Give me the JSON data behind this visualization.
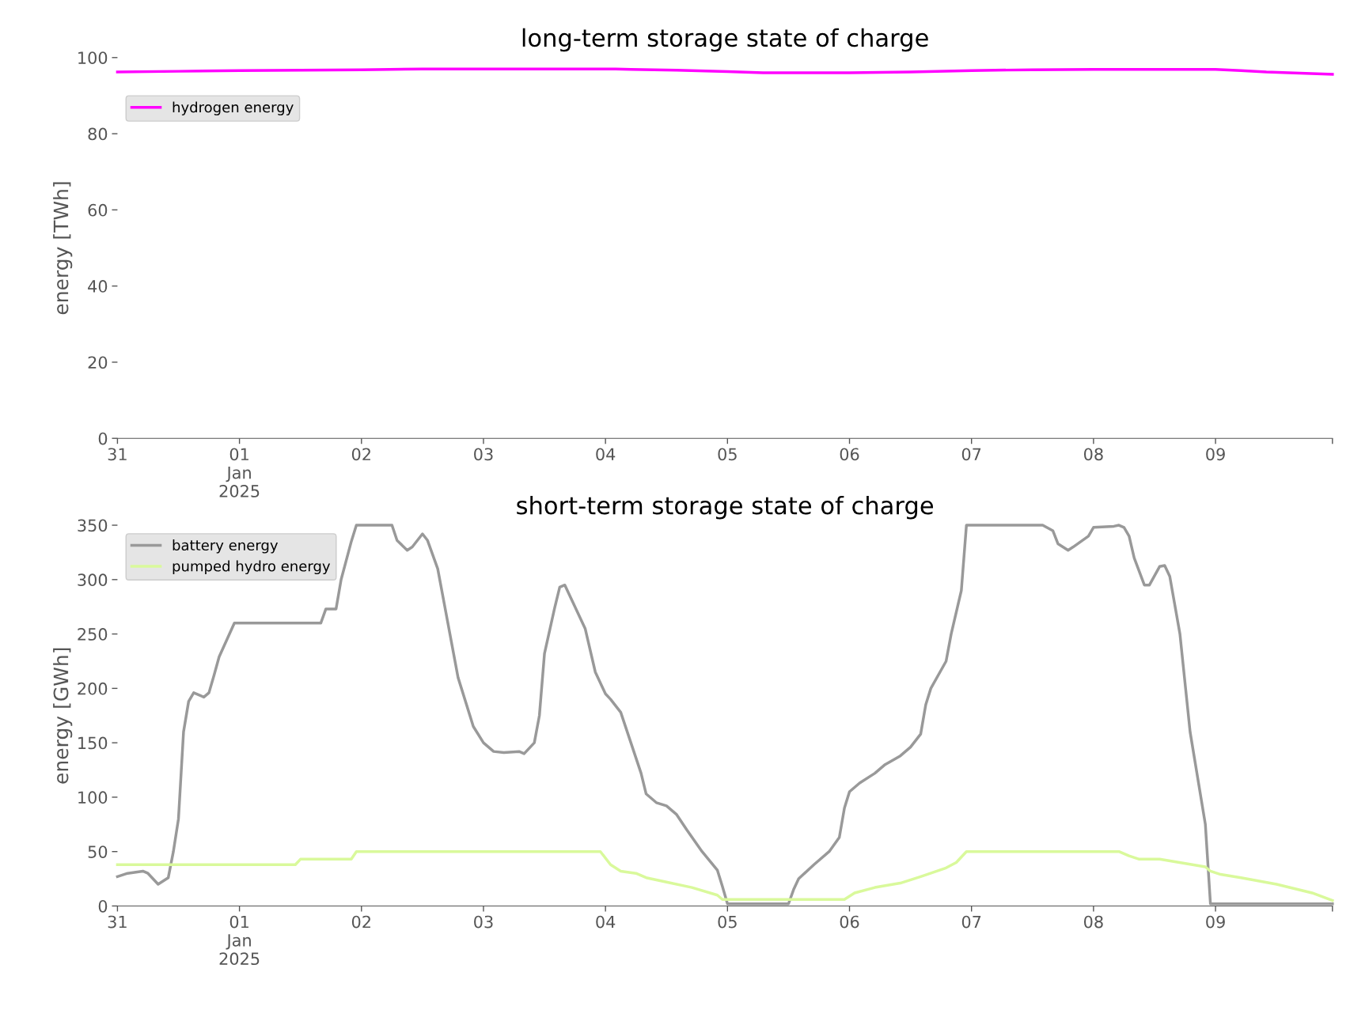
{
  "chart_data": [
    {
      "type": "line",
      "title": "long-term storage state of charge",
      "ylabel": "energy [TWh]",
      "ylim": [
        0,
        100
      ],
      "yticks": [
        0,
        20,
        40,
        60,
        80,
        100
      ],
      "xlim": [
        "2024-12-31",
        "2025-01-09T23:00"
      ],
      "xticks": [
        {
          "value": "2024-12-31",
          "label": "31"
        },
        {
          "value": "2025-01-01",
          "label": "01\nJan\n2025"
        },
        {
          "value": "2025-01-02",
          "label": "02"
        },
        {
          "value": "2025-01-03",
          "label": "03"
        },
        {
          "value": "2025-01-04",
          "label": "04"
        },
        {
          "value": "2025-01-05",
          "label": "05"
        },
        {
          "value": "2025-01-06",
          "label": "06"
        },
        {
          "value": "2025-01-07",
          "label": "07"
        },
        {
          "value": "2025-01-08",
          "label": "08"
        },
        {
          "value": "2025-01-09",
          "label": "09"
        },
        {
          "value": "2025-01-09T23:00",
          "label": null
        }
      ],
      "grid": false,
      "legend": "top left",
      "series": [
        {
          "name": "hydrogen energy",
          "color": "#ff00ff",
          "x": [
            "2024-12-31T00:00",
            "2024-12-31T12:00",
            "2025-01-01T00:00",
            "2025-01-01T12:00",
            "2025-01-02T00:00",
            "2025-01-02T12:00",
            "2025-01-04T02:00",
            "2025-01-04T05:00",
            "2025-01-04T14:00",
            "2025-01-05T00:00",
            "2025-01-05T07:00",
            "2025-01-06T00:00",
            "2025-01-06T12:00",
            "2025-01-07T00:00",
            "2025-01-07T12:00",
            "2025-01-08T00:00",
            "2025-01-09T00:00",
            "2025-01-09T05:00",
            "2025-01-09T10:00",
            "2025-01-09T23:00"
          ],
          "values": [
            96.2,
            96.4,
            96.6,
            96.7,
            96.8,
            97.0,
            97.0,
            96.9,
            96.7,
            96.3,
            96.0,
            96.0,
            96.2,
            96.6,
            96.8,
            96.9,
            96.9,
            96.6,
            96.2,
            95.6
          ]
        }
      ]
    },
    {
      "type": "line",
      "title": "short-term storage state of charge",
      "ylabel": "energy [GWh]",
      "ylim": [
        0,
        350
      ],
      "yticks": [
        0,
        50,
        100,
        150,
        200,
        250,
        300,
        350
      ],
      "xlim": [
        "2024-12-31",
        "2025-01-09T23:00"
      ],
      "xticks": [
        {
          "value": "2024-12-31",
          "label": "31"
        },
        {
          "value": "2025-01-01",
          "label": "01\nJan\n2025"
        },
        {
          "value": "2025-01-02",
          "label": "02"
        },
        {
          "value": "2025-01-03",
          "label": "03"
        },
        {
          "value": "2025-01-04",
          "label": "04"
        },
        {
          "value": "2025-01-05",
          "label": "05"
        },
        {
          "value": "2025-01-06",
          "label": "06"
        },
        {
          "value": "2025-01-07",
          "label": "07"
        },
        {
          "value": "2025-01-08",
          "label": "08"
        },
        {
          "value": "2025-01-09",
          "label": "09"
        },
        {
          "value": "2025-01-09T23:00",
          "label": null
        }
      ],
      "grid": false,
      "legend": "top left",
      "series": [
        {
          "name": "battery energy",
          "color": "#999999",
          "x": [
            "2024-12-31T00:00",
            "2024-12-31T02:00",
            "2024-12-31T05:00",
            "2024-12-31T06:00",
            "2024-12-31T08:00",
            "2024-12-31T10:00",
            "2024-12-31T11:00",
            "2024-12-31T12:00",
            "2024-12-31T13:00",
            "2024-12-31T14:00",
            "2024-12-31T15:00",
            "2024-12-31T17:00",
            "2024-12-31T18:00",
            "2024-12-31T19:00",
            "2024-12-31T20:00",
            "2024-12-31T23:00",
            "2025-01-01T16:00",
            "2025-01-01T17:00",
            "2025-01-01T19:00",
            "2025-01-01T20:00",
            "2025-01-01T22:00",
            "2025-01-01T23:00",
            "2025-01-02T06:00",
            "2025-01-02T07:00",
            "2025-01-02T09:00",
            "2025-01-02T10:00",
            "2025-01-02T12:00",
            "2025-01-02T13:00",
            "2025-01-02T15:00",
            "2025-01-02T19:00",
            "2025-01-02T22:00",
            "2025-01-03T00:00",
            "2025-01-03T02:00",
            "2025-01-03T04:00",
            "2025-01-03T07:00",
            "2025-01-03T08:00",
            "2025-01-03T10:00",
            "2025-01-03T11:00",
            "2025-01-03T12:00",
            "2025-01-03T14:00",
            "2025-01-03T15:00",
            "2025-01-03T16:00",
            "2025-01-03T17:00",
            "2025-01-03T20:00",
            "2025-01-03T22:00",
            "2025-01-04T00:00",
            "2025-01-04T01:00",
            "2025-01-04T03:00",
            "2025-01-04T05:00",
            "2025-01-04T07:00",
            "2025-01-04T08:00",
            "2025-01-04T10:00",
            "2025-01-04T12:00",
            "2025-01-04T14:00",
            "2025-01-04T16:00",
            "2025-01-04T19:00",
            "2025-01-04T22:00",
            "2025-01-04T23:00",
            "2025-01-05T00:00",
            "2025-01-05T12:00",
            "2025-01-05T13:00",
            "2025-01-05T14:00",
            "2025-01-05T17:00",
            "2025-01-05T20:00",
            "2025-01-05T22:00",
            "2025-01-05T23:00",
            "2025-01-06T00:00",
            "2025-01-06T02:00",
            "2025-01-06T05:00",
            "2025-01-06T07:00",
            "2025-01-06T10:00",
            "2025-01-06T12:00",
            "2025-01-06T14:00",
            "2025-01-06T15:00",
            "2025-01-06T16:00",
            "2025-01-06T19:00",
            "2025-01-06T20:00",
            "2025-01-06T22:00",
            "2025-01-06T23:00",
            "2025-01-07T14:00",
            "2025-01-07T16:00",
            "2025-01-07T17:00",
            "2025-01-07T19:00",
            "2025-01-07T20:00",
            "2025-01-07T23:00",
            "2025-01-08T00:00",
            "2025-01-08T04:00",
            "2025-01-08T05:00",
            "2025-01-08T06:00",
            "2025-01-08T07:00",
            "2025-01-08T08:00",
            "2025-01-08T10:00",
            "2025-01-08T11:00",
            "2025-01-08T13:00",
            "2025-01-08T14:00",
            "2025-01-08T15:00",
            "2025-01-08T17:00",
            "2025-01-08T19:00",
            "2025-01-08T22:00",
            "2025-01-08T23:00",
            "2025-01-09T23:00"
          ],
          "values": [
            27,
            30,
            32,
            30,
            20,
            26,
            50,
            80,
            160,
            188,
            196,
            192,
            196,
            212,
            229,
            260,
            260,
            273,
            273,
            300,
            335,
            350,
            350,
            336,
            327,
            330,
            342,
            336,
            310,
            210,
            165,
            150,
            142,
            141,
            142,
            140,
            150,
            175,
            232,
            274,
            293,
            295,
            285,
            255,
            215,
            195,
            190,
            178,
            150,
            122,
            103,
            95,
            92,
            84,
            70,
            50,
            33,
            18,
            2,
            2,
            15,
            25,
            38,
            50,
            63,
            90,
            105,
            113,
            122,
            130,
            138,
            146,
            158,
            185,
            200,
            225,
            250,
            290,
            350,
            350,
            345,
            333,
            327,
            330,
            340,
            348,
            349,
            350,
            348,
            340,
            320,
            295,
            295,
            312,
            313,
            303,
            250,
            160,
            75,
            2,
            2
          ]
        },
        {
          "name": "pumped hydro energy",
          "color": "#d9f99b",
          "x": [
            "2024-12-31T00:00",
            "2025-01-01T11:00",
            "2025-01-01T12:00",
            "2025-01-01T22:00",
            "2025-01-01T23:00",
            "2025-01-03T23:00",
            "2025-01-04T01:00",
            "2025-01-04T03:00",
            "2025-01-04T06:00",
            "2025-01-04T08:00",
            "2025-01-04T12:00",
            "2025-01-04T17:00",
            "2025-01-04T22:00",
            "2025-01-04T23:00",
            "2025-01-05T23:00",
            "2025-01-06T01:00",
            "2025-01-06T05:00",
            "2025-01-06T10:00",
            "2025-01-06T14:00",
            "2025-01-06T19:00",
            "2025-01-06T21:00",
            "2025-01-06T23:00",
            "2025-01-08T05:00",
            "2025-01-08T07:00",
            "2025-01-08T09:00",
            "2025-01-08T13:00",
            "2025-01-08T22:00",
            "2025-01-08T23:00",
            "2025-01-09T01:00",
            "2025-01-09T05:00",
            "2025-01-09T12:00",
            "2025-01-09T19:00",
            "2025-01-09T23:00"
          ],
          "values": [
            38,
            38,
            43,
            43,
            50,
            50,
            38,
            32,
            30,
            26,
            22,
            17,
            10,
            6,
            6,
            12,
            17,
            21,
            27,
            35,
            40,
            50,
            50,
            46,
            43,
            43,
            36,
            32,
            29,
            26,
            20,
            12,
            5
          ]
        }
      ]
    }
  ]
}
